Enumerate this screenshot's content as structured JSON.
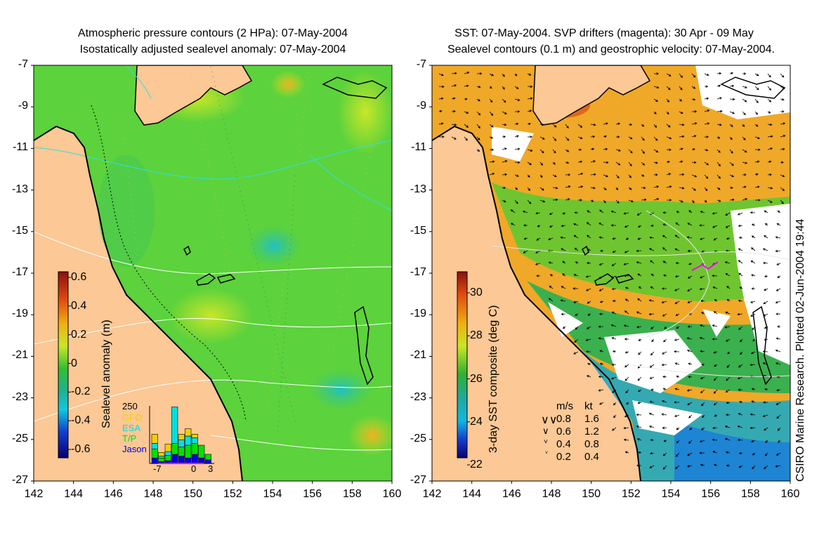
{
  "left_panel": {
    "title_line1": "Atmospheric pressure contours (2 HPa): 07-May-2004",
    "title_line2": "Isostatically adjusted sealevel anomaly: 07-May-2004",
    "colorbar": {
      "label": "Sealevel anomaly (m)",
      "ticks": [
        "0.6",
        "0.4",
        "0.2",
        "0",
        "-0.2",
        "-0.4",
        "-0.6"
      ],
      "range": [
        -0.6,
        0.6
      ]
    },
    "histogram": {
      "ymax_label": "250",
      "legend": [
        {
          "name": "GFO",
          "color": "#f0d000"
        },
        {
          "name": "ESA",
          "color": "#00e0e0"
        },
        {
          "name": "T/P",
          "color": "#00e000"
        },
        {
          "name": "Jason",
          "color": "#0000e0"
        }
      ],
      "xticks": [
        "-7",
        "0",
        "3"
      ]
    }
  },
  "right_panel": {
    "title_line1": "SST: 07-May-2004. SVP drifters (magenta): 30 Apr - 09 May",
    "title_line2": "Sealevel contours (0.1 m) and geostrophic velocity: 07-May-2004.",
    "colorbar": {
      "label": "3-day SST composite (deg C)",
      "ticks": [
        "30",
        "28",
        "26",
        "24",
        "22"
      ],
      "range": [
        22,
        31
      ]
    },
    "velocity_legend": {
      "header_ms": "m/s",
      "header_kt": "kt",
      "rows": [
        {
          "ms": "0.8",
          "kt": "1.6"
        },
        {
          "ms": "0.6",
          "kt": "1.2"
        },
        {
          "ms": "0.4",
          "kt": "0.8"
        },
        {
          "ms": "0.2",
          "kt": "0.4"
        }
      ]
    },
    "credit": "CSIRO Marine Research. Plotted 02-Jun-2004 19:44"
  },
  "axes": {
    "lat_ticks": [
      "-7",
      "-9",
      "-11",
      "-13",
      "-15",
      "-17",
      "-19",
      "-21",
      "-23",
      "-25",
      "-27"
    ],
    "lon_ticks": [
      "142",
      "144",
      "146",
      "148",
      "150",
      "152",
      "154",
      "156",
      "158",
      "160"
    ],
    "lat_range": [
      -27,
      -7
    ],
    "lon_range": [
      142,
      160
    ]
  },
  "colors": {
    "land": "#fbc896",
    "sea_anomaly_base": "#5cd23c",
    "sst_warm": "#f0a020",
    "coast": "#000000"
  }
}
